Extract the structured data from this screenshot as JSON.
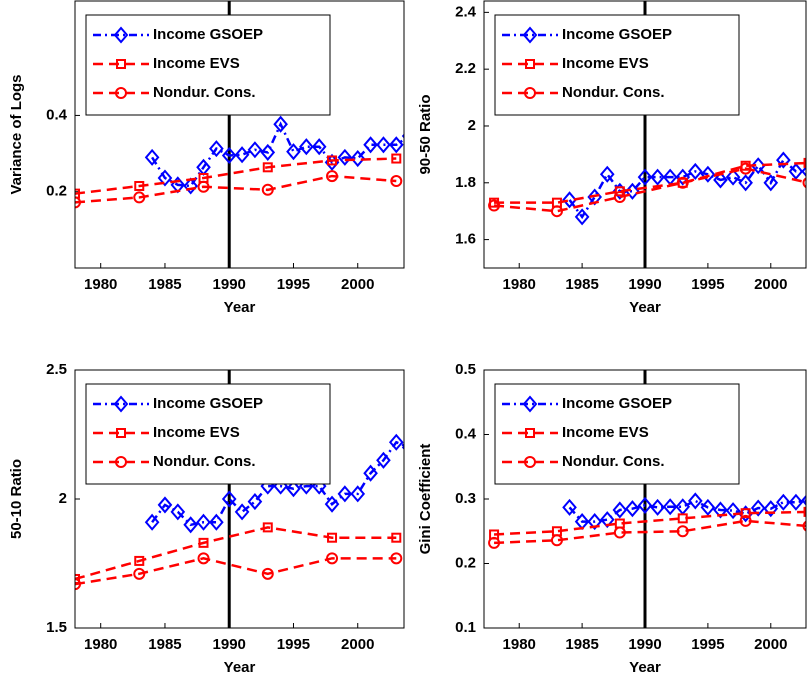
{
  "chart_data": [
    {
      "type": "line",
      "xlabel": "Year",
      "ylabel": "Variance of Logs",
      "xlim": [
        1978,
        2003.6
      ],
      "ylim": [
        0,
        0.7
      ],
      "xticks": [
        1980,
        1985,
        1990,
        1995,
        2000
      ],
      "yticks": [
        0.2,
        0.4
      ],
      "vline": 1990,
      "legend": "upper left",
      "series": [
        {
          "name": "Income GSOEP",
          "color": "#0000ff",
          "marker": "diamond",
          "dash": "dashdot",
          "x": [
            1984,
            1985,
            1986,
            1987,
            1988,
            1989,
            1990,
            1991,
            1992,
            1993,
            1994,
            1995,
            1996,
            1997,
            1998,
            1999,
            2000,
            2001,
            2002,
            2003,
            2004
          ],
          "values": [
            0.29,
            0.236,
            0.218,
            0.215,
            0.264,
            0.313,
            0.295,
            0.297,
            0.31,
            0.303,
            0.377,
            0.305,
            0.318,
            0.318,
            0.277,
            0.29,
            0.287,
            0.323,
            0.323,
            0.323,
            0.346
          ]
        },
        {
          "name": "Income EVS",
          "color": "#ff0000",
          "marker": "square",
          "dash": "dashed",
          "x": [
            1978,
            1983,
            1988,
            1993,
            1998,
            2003
          ],
          "values": [
            0.195,
            0.215,
            0.236,
            0.264,
            0.282,
            0.287
          ]
        },
        {
          "name": "Nondur. Cons.",
          "color": "#ff0000",
          "marker": "circle",
          "dash": "dashed",
          "x": [
            1978,
            1983,
            1988,
            1993,
            1998,
            2003
          ],
          "values": [
            0.172,
            0.185,
            0.213,
            0.205,
            0.241,
            0.228
          ]
        }
      ]
    },
    {
      "type": "line",
      "xlabel": "Year",
      "ylabel": "90-50 Ratio",
      "xlim": [
        1977.2,
        2002.8
      ],
      "ylim": [
        1.5,
        2.44
      ],
      "xticks": [
        1980,
        1985,
        1990,
        1995,
        2000
      ],
      "yticks": [
        1.6,
        1.8,
        2,
        2.2,
        2.4
      ],
      "vline": 1990,
      "legend": "upper left",
      "series": [
        {
          "name": "Income GSOEP",
          "color": "#0000ff",
          "marker": "diamond",
          "dash": "dashdot",
          "x": [
            1984,
            1985,
            1986,
            1987,
            1988,
            1989,
            1990,
            1991,
            1992,
            1993,
            1994,
            1995,
            1996,
            1997,
            1998,
            1999,
            2000,
            2001,
            2002,
            2003,
            2004
          ],
          "values": [
            1.74,
            1.68,
            1.75,
            1.83,
            1.77,
            1.77,
            1.82,
            1.82,
            1.82,
            1.82,
            1.84,
            1.83,
            1.81,
            1.82,
            1.8,
            1.86,
            1.8,
            1.88,
            1.84,
            1.84,
            1.86
          ]
        },
        {
          "name": "Income EVS",
          "color": "#ff0000",
          "marker": "square",
          "dash": "dashed",
          "x": [
            1978,
            1983,
            1988,
            1993,
            1998,
            2003
          ],
          "values": [
            1.73,
            1.73,
            1.77,
            1.8,
            1.86,
            1.87
          ]
        },
        {
          "name": "Nondur. Cons.",
          "color": "#ff0000",
          "marker": "circle",
          "dash": "dashed",
          "x": [
            1978,
            1983,
            1988,
            1993,
            1998,
            2003
          ],
          "values": [
            1.72,
            1.7,
            1.75,
            1.8,
            1.85,
            1.8
          ]
        }
      ]
    },
    {
      "type": "line",
      "xlabel": "Year",
      "ylabel": "50-10 Ratio",
      "xlim": [
        1978,
        2003.6
      ],
      "ylim": [
        1.5,
        2.5
      ],
      "xticks": [
        1980,
        1985,
        1990,
        1995,
        2000
      ],
      "yticks": [
        1.5,
        2,
        2.5
      ],
      "vline": 1990,
      "legend": "upper left",
      "series": [
        {
          "name": "Income GSOEP",
          "color": "#0000ff",
          "marker": "diamond",
          "dash": "dashdot",
          "x": [
            1984,
            1985,
            1986,
            1987,
            1988,
            1989,
            1990,
            1991,
            1992,
            1993,
            1994,
            1995,
            1996,
            1997,
            1998,
            1999,
            2000,
            2001,
            2002,
            2003,
            2004
          ],
          "values": [
            1.91,
            1.977,
            1.95,
            1.9,
            1.91,
            1.91,
            2.0,
            1.95,
            1.99,
            2.05,
            2.05,
            2.04,
            2.05,
            2.05,
            1.98,
            2.02,
            2.02,
            2.1,
            2.15,
            2.22,
            2.2
          ]
        },
        {
          "name": "Income EVS",
          "color": "#ff0000",
          "marker": "square",
          "dash": "dashed",
          "x": [
            1978,
            1983,
            1988,
            1993,
            1998,
            2003
          ],
          "values": [
            1.69,
            1.76,
            1.83,
            1.89,
            1.85,
            1.85
          ]
        },
        {
          "name": "Nondur. Cons.",
          "color": "#ff0000",
          "marker": "circle",
          "dash": "dashed",
          "x": [
            1978,
            1983,
            1988,
            1993,
            1998,
            2003
          ],
          "values": [
            1.67,
            1.71,
            1.77,
            1.71,
            1.77,
            1.77
          ]
        }
      ]
    },
    {
      "type": "line",
      "xlabel": "Year",
      "ylabel": "Gini Coefficient",
      "xlim": [
        1977.2,
        2002.8
      ],
      "ylim": [
        0.1,
        0.5
      ],
      "xticks": [
        1980,
        1985,
        1990,
        1995,
        2000
      ],
      "yticks": [
        0.1,
        0.2,
        0.3,
        0.4,
        0.5
      ],
      "vline": 1990,
      "legend": "upper left",
      "series": [
        {
          "name": "Income GSOEP",
          "color": "#0000ff",
          "marker": "diamond",
          "dash": "dashdot",
          "x": [
            1984,
            1985,
            1986,
            1987,
            1988,
            1989,
            1990,
            1991,
            1992,
            1993,
            1994,
            1995,
            1996,
            1997,
            1998,
            1999,
            2000,
            2001,
            2002,
            2003,
            2004
          ],
          "values": [
            0.287,
            0.265,
            0.265,
            0.268,
            0.283,
            0.285,
            0.29,
            0.287,
            0.288,
            0.288,
            0.297,
            0.287,
            0.283,
            0.282,
            0.277,
            0.286,
            0.285,
            0.295,
            0.295,
            0.298,
            0.298
          ]
        },
        {
          "name": "Income EVS",
          "color": "#ff0000",
          "marker": "square",
          "dash": "dashed",
          "x": [
            1978,
            1983,
            1988,
            1993,
            1998,
            2003
          ],
          "values": [
            0.245,
            0.25,
            0.262,
            0.27,
            0.278,
            0.28
          ]
        },
        {
          "name": "Nondur. Cons.",
          "color": "#ff0000",
          "marker": "circle",
          "dash": "dashed",
          "x": [
            1978,
            1983,
            1988,
            1993,
            1998,
            2003
          ],
          "values": [
            0.232,
            0.236,
            0.248,
            0.25,
            0.266,
            0.258
          ]
        }
      ]
    }
  ]
}
